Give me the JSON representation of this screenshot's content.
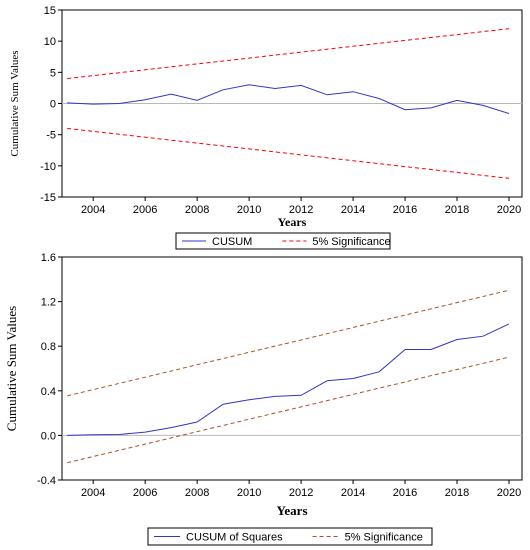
{
  "chart_data": [
    {
      "type": "line",
      "title": "",
      "xlabel": "Years",
      "ylabel": "Cumulative Sum Values",
      "x": [
        2003,
        2004,
        2005,
        2006,
        2007,
        2008,
        2009,
        2010,
        2011,
        2012,
        2013,
        2014,
        2015,
        2016,
        2017,
        2018,
        2019,
        2020
      ],
      "xlim": [
        2002.8,
        2020.5
      ],
      "ylim": [
        -15,
        15
      ],
      "xticks": [
        "2004",
        "2006",
        "2008",
        "2010",
        "2012",
        "2014",
        "2016",
        "2018",
        "2020"
      ],
      "xtick_values": [
        2004,
        2006,
        2008,
        2010,
        2012,
        2014,
        2016,
        2018,
        2020
      ],
      "yticks": [
        "15",
        "10",
        "5",
        "0",
        "-5",
        "-10",
        "-15"
      ],
      "ytick_values": [
        15,
        10,
        5,
        0,
        -5,
        -10,
        -15
      ],
      "zero_line": true,
      "legend_position": "bottom",
      "series": [
        {
          "name": "CUSUM",
          "color": "#3333cc",
          "style": "solid",
          "values": [
            0.1,
            -0.1,
            0.0,
            0.6,
            1.5,
            0.5,
            2.2,
            3.0,
            2.4,
            2.9,
            1.4,
            1.9,
            0.8,
            -1.0,
            -0.7,
            0.5,
            -0.3,
            -1.6
          ]
        },
        {
          "name": "5% Significance",
          "color": "#ff0000",
          "style": "dashed",
          "values": [
            4.0,
            4.47,
            4.94,
            5.41,
            5.88,
            6.35,
            6.82,
            7.29,
            7.76,
            8.24,
            8.71,
            9.18,
            9.65,
            10.12,
            10.59,
            11.06,
            11.53,
            12.0
          ]
        },
        {
          "name": "",
          "color": "#ff0000",
          "style": "dashed",
          "values": [
            -4.0,
            -4.47,
            -4.94,
            -5.41,
            -5.88,
            -6.35,
            -6.82,
            -7.29,
            -7.76,
            -8.24,
            -8.71,
            -9.18,
            -9.65,
            -10.12,
            -10.59,
            -11.06,
            -11.53,
            -12.0
          ]
        }
      ]
    },
    {
      "type": "line",
      "title": "",
      "xlabel": "Years",
      "ylabel": "Cumulative Sum Values",
      "x": [
        2003,
        2004,
        2005,
        2006,
        2007,
        2008,
        2009,
        2010,
        2011,
        2012,
        2013,
        2014,
        2015,
        2016,
        2017,
        2018,
        2019,
        2020
      ],
      "xlim": [
        2002.8,
        2020.5
      ],
      "ylim": [
        -0.4,
        1.6
      ],
      "xticks": [
        "2004",
        "2006",
        "2008",
        "2010",
        "2012",
        "2014",
        "2016",
        "2018",
        "2020"
      ],
      "xtick_values": [
        2004,
        2006,
        2008,
        2010,
        2012,
        2014,
        2016,
        2018,
        2020
      ],
      "yticks": [
        "1.6",
        "1.2",
        "0.8",
        "0.4",
        "0.0",
        "-0.4"
      ],
      "ytick_values": [
        1.6,
        1.2,
        0.8,
        0.4,
        0.0,
        -0.4
      ],
      "zero_line": true,
      "legend_position": "bottom",
      "series": [
        {
          "name": "CUSUM of Squares",
          "color": "#3333cc",
          "style": "solid",
          "values": [
            0.0,
            0.005,
            0.008,
            0.03,
            0.07,
            0.12,
            0.28,
            0.32,
            0.35,
            0.36,
            0.49,
            0.51,
            0.57,
            0.77,
            0.77,
            0.86,
            0.89,
            1.0
          ]
        },
        {
          "name": "5% Significance",
          "color": "#b05020",
          "style": "dashed",
          "values": [
            0.355,
            0.411,
            0.466,
            0.522,
            0.578,
            0.634,
            0.689,
            0.745,
            0.801,
            0.856,
            0.912,
            0.968,
            1.024,
            1.079,
            1.135,
            1.191,
            1.246,
            1.302
          ]
        },
        {
          "name": "",
          "color": "#b05020",
          "style": "dashed",
          "values": [
            -0.245,
            -0.189,
            -0.134,
            -0.078,
            -0.022,
            0.034,
            0.089,
            0.145,
            0.201,
            0.256,
            0.312,
            0.368,
            0.424,
            0.479,
            0.535,
            0.591,
            0.646,
            0.702
          ]
        }
      ]
    }
  ]
}
